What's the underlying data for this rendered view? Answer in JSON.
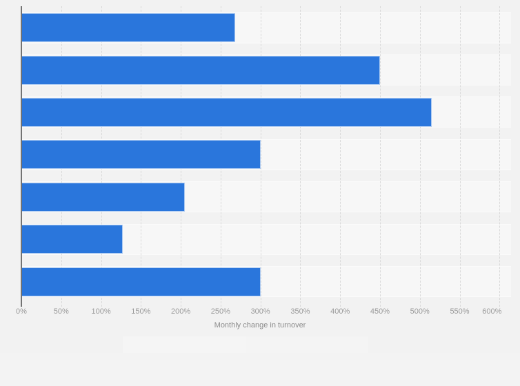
{
  "chart_data": {
    "type": "bar",
    "orientation": "horizontal",
    "title": "",
    "xlabel": "Monthly change in turnover",
    "ylabel": "",
    "x_unit": "%",
    "xlim": [
      0,
      600
    ],
    "x_tick_step": 50,
    "x_tick_labels": [
      "0%",
      "50%",
      "100%",
      "150%",
      "200%",
      "250%",
      "300%",
      "350%",
      "400%",
      "450%",
      "500%",
      "550%",
      "600%"
    ],
    "values": [
      268,
      450,
      515,
      300,
      205,
      127,
      300
    ],
    "grid": "vertical-dashed",
    "legend": "none"
  },
  "colors": {
    "bar": "#2a76dc",
    "grid_line": "#d9d9d9",
    "axis_line": "#737373",
    "tick_label": "#9a9a9a",
    "axis_title": "#8c8c8c",
    "row_band": "#f7f7f7",
    "page_background": "#f2f2f2",
    "bottom_tile_light": "#f5f5f5",
    "bottom_tile_mid": "#f4f4f4",
    "bottom_strip": "#f3f3f3"
  }
}
